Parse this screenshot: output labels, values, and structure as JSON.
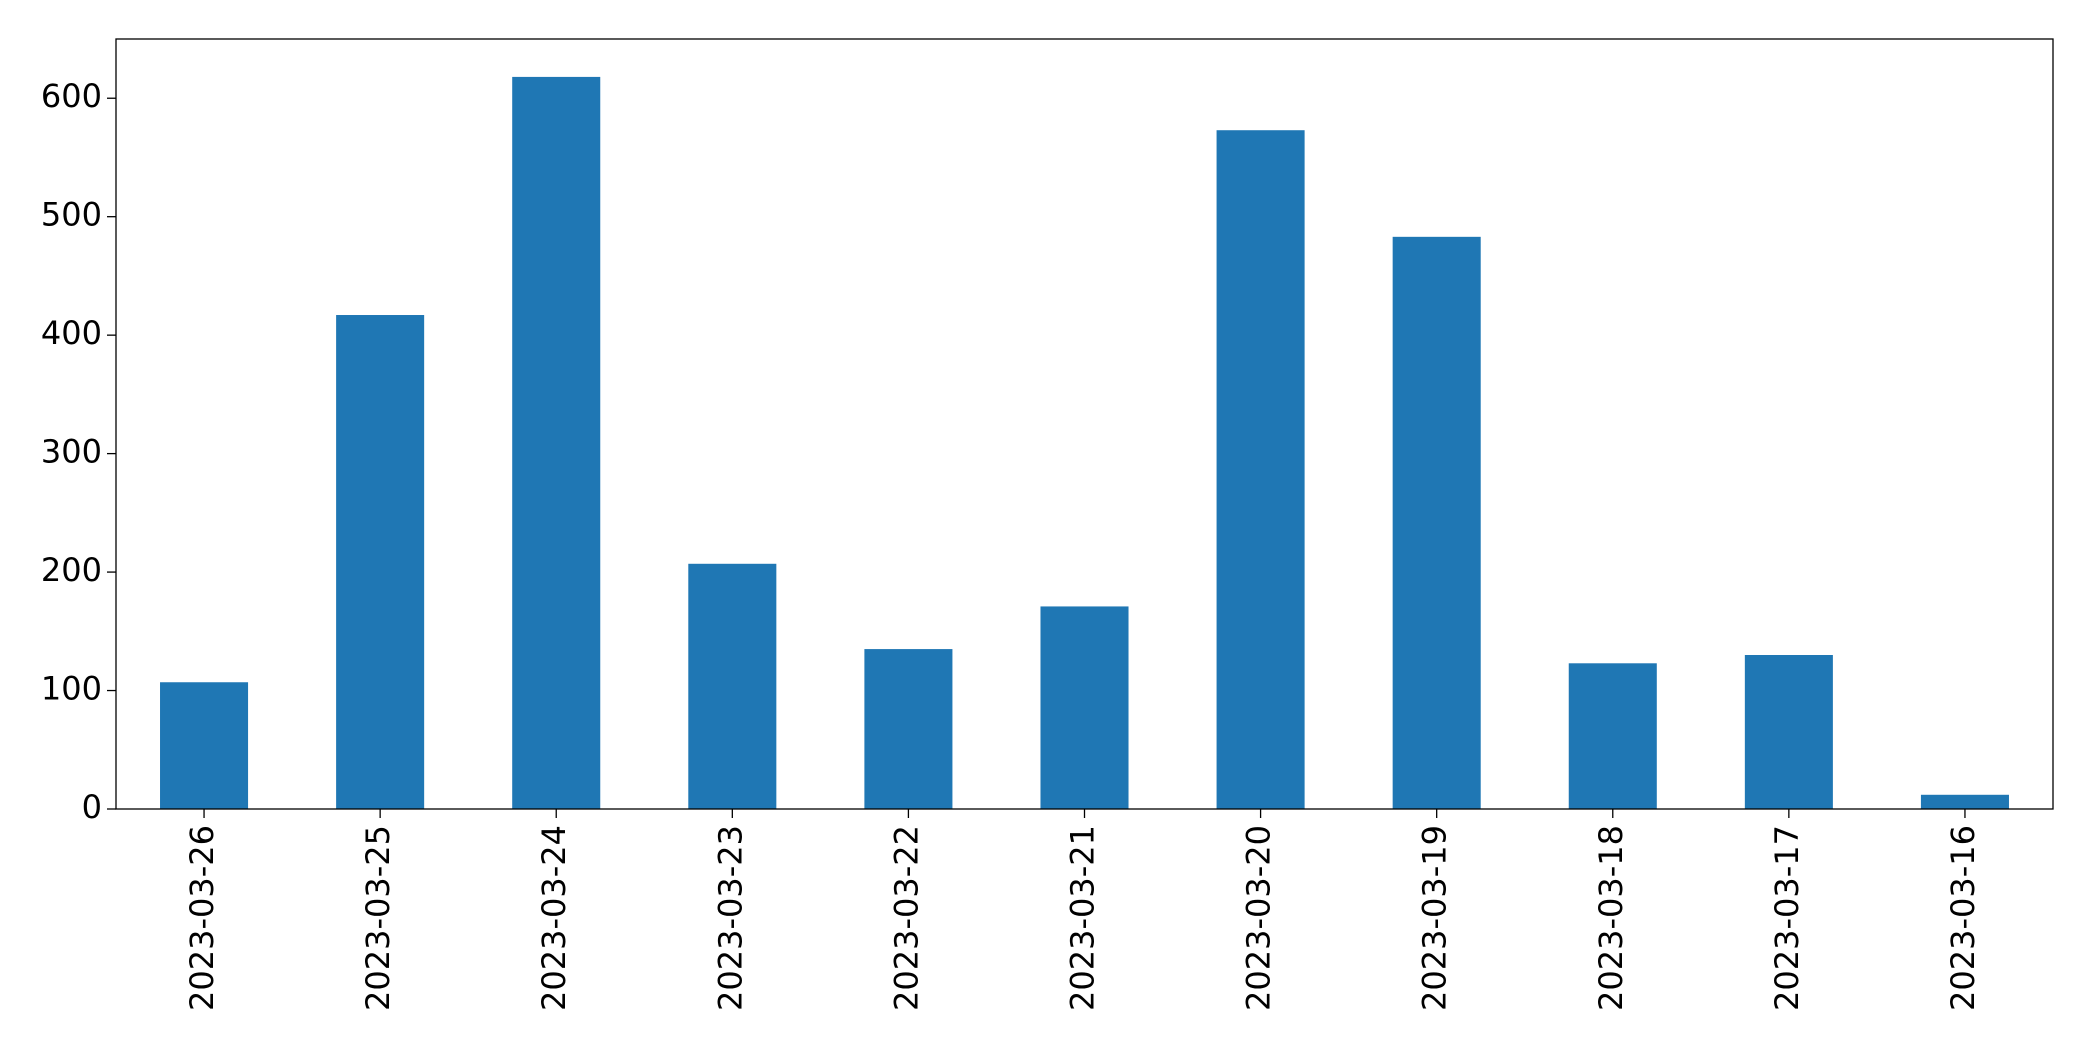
{
  "chart_data": {
    "type": "bar",
    "categories": [
      "2023-03-26",
      "2023-03-25",
      "2023-03-24",
      "2023-03-23",
      "2023-03-22",
      "2023-03-21",
      "2023-03-20",
      "2023-03-19",
      "2023-03-18",
      "2023-03-17",
      "2023-03-16"
    ],
    "values": [
      107,
      417,
      618,
      207,
      135,
      171,
      573,
      483,
      123,
      130,
      12
    ],
    "color": "#1f77b4",
    "ylim": [
      0,
      650
    ],
    "yticks": [
      0,
      100,
      200,
      300,
      400,
      500,
      600
    ],
    "grid": false
  }
}
